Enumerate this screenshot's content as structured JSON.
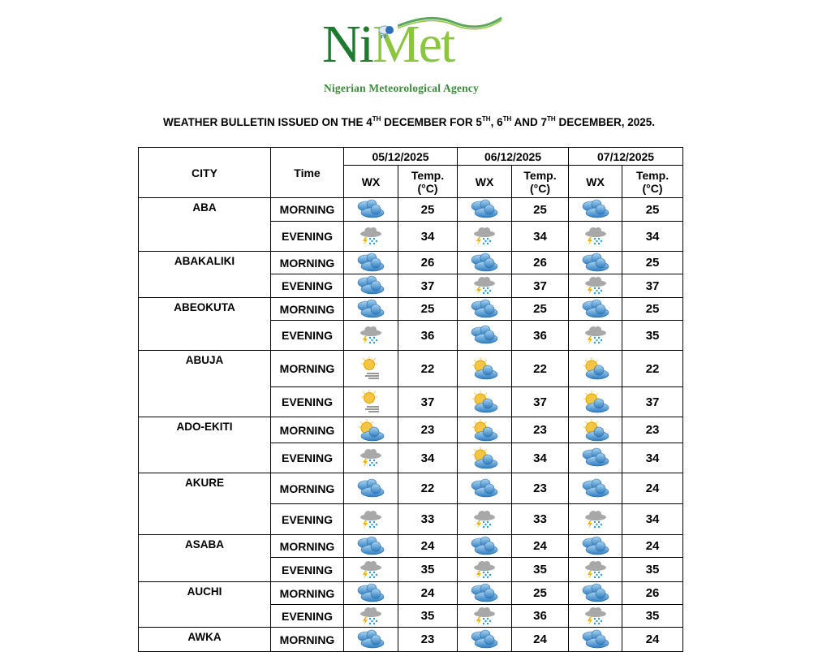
{
  "logo": {
    "text_ni": "Ni",
    "text_met": "Met",
    "subtitle": "Nigerian Meteorological Agency",
    "colors": {
      "ni": "#1f7a30",
      "met": "#8cc63f"
    }
  },
  "title_parts": [
    {
      "t": "WEATHER BULLETIN ISSUED ON THE 4"
    },
    {
      "sup": "TH"
    },
    {
      "t": " DECEMBER FOR 5"
    },
    {
      "sup": "TH"
    },
    {
      "t": ", 6"
    },
    {
      "sup": "TH"
    },
    {
      "t": " AND 7"
    },
    {
      "sup": "TH"
    },
    {
      "t": " DECEMBER, 2025."
    }
  ],
  "table": {
    "header": {
      "city": "CITY",
      "time": "Time",
      "wx": "WX",
      "temp": "Temp. (°C)"
    },
    "dates": [
      "05/12/2025",
      "06/12/2025",
      "07/12/2025"
    ],
    "cities": [
      {
        "name": "ABA",
        "rows": [
          {
            "time": "MORNING",
            "days": [
              {
                "wx": "cloudy",
                "temp": "25"
              },
              {
                "wx": "cloudy",
                "temp": "25"
              },
              {
                "wx": "cloudy",
                "temp": "25"
              }
            ]
          },
          {
            "time": "EVENING",
            "days": [
              {
                "wx": "thunderstorm",
                "temp": "34"
              },
              {
                "wx": "thunderstorm",
                "temp": "34"
              },
              {
                "wx": "thunderstorm",
                "temp": "34"
              }
            ]
          }
        ]
      },
      {
        "name": "ABAKALIKI",
        "rows": [
          {
            "time": "MORNING",
            "days": [
              {
                "wx": "cloudy",
                "temp": "26"
              },
              {
                "wx": "cloudy",
                "temp": "26"
              },
              {
                "wx": "cloudy",
                "temp": "25"
              }
            ]
          },
          {
            "time": "EVENING",
            "days": [
              {
                "wx": "cloudy",
                "temp": "37"
              },
              {
                "wx": "thunderstorm",
                "temp": "37"
              },
              {
                "wx": "thunderstorm",
                "temp": "37"
              }
            ]
          }
        ]
      },
      {
        "name": "ABEOKUTA",
        "rows": [
          {
            "time": "MORNING",
            "days": [
              {
                "wx": "cloudy",
                "temp": "25"
              },
              {
                "wx": "cloudy",
                "temp": "25"
              },
              {
                "wx": "cloudy",
                "temp": "25"
              }
            ]
          },
          {
            "time": "EVENING",
            "days": [
              {
                "wx": "thunderstorm",
                "temp": "36"
              },
              {
                "wx": "cloudy",
                "temp": "36"
              },
              {
                "wx": "thunderstorm",
                "temp": "35"
              }
            ]
          }
        ]
      },
      {
        "name": "ABUJA",
        "rows": [
          {
            "time": "MORNING",
            "days": [
              {
                "wx": "sunny-windy",
                "temp": "22"
              },
              {
                "wx": "partly-cloudy",
                "temp": "22"
              },
              {
                "wx": "partly-cloudy",
                "temp": "22"
              }
            ]
          },
          {
            "time": "EVENING",
            "days": [
              {
                "wx": "sunny-windy",
                "temp": "37"
              },
              {
                "wx": "partly-cloudy",
                "temp": "37"
              },
              {
                "wx": "partly-cloudy",
                "temp": "37"
              }
            ]
          }
        ]
      },
      {
        "name": "ADO-EKITI",
        "rows": [
          {
            "time": "MORNING",
            "days": [
              {
                "wx": "partly-cloudy",
                "temp": "23"
              },
              {
                "wx": "partly-cloudy",
                "temp": "23"
              },
              {
                "wx": "partly-cloudy",
                "temp": "23"
              }
            ]
          },
          {
            "time": "EVENING",
            "days": [
              {
                "wx": "thunderstorm",
                "temp": "34"
              },
              {
                "wx": "partly-cloudy",
                "temp": "34"
              },
              {
                "wx": "cloudy",
                "temp": "34"
              }
            ]
          }
        ]
      },
      {
        "name": "AKURE",
        "rows": [
          {
            "time": "MORNING",
            "days": [
              {
                "wx": "cloudy",
                "temp": "22"
              },
              {
                "wx": "cloudy",
                "temp": "23"
              },
              {
                "wx": "cloudy",
                "temp": "24"
              }
            ]
          },
          {
            "time": "EVENING",
            "days": [
              {
                "wx": "thunderstorm",
                "temp": "33"
              },
              {
                "wx": "thunderstorm",
                "temp": "33"
              },
              {
                "wx": "thunderstorm",
                "temp": "34"
              }
            ]
          }
        ]
      },
      {
        "name": "ASABA",
        "rows": [
          {
            "time": "MORNING",
            "days": [
              {
                "wx": "cloudy",
                "temp": "24"
              },
              {
                "wx": "cloudy",
                "temp": "24"
              },
              {
                "wx": "cloudy",
                "temp": "24"
              }
            ]
          },
          {
            "time": "EVENING",
            "days": [
              {
                "wx": "thunderstorm",
                "temp": "35"
              },
              {
                "wx": "thunderstorm",
                "temp": "35"
              },
              {
                "wx": "thunderstorm",
                "temp": "35"
              }
            ]
          }
        ]
      },
      {
        "name": "AUCHI",
        "rows": [
          {
            "time": "MORNING",
            "days": [
              {
                "wx": "cloudy",
                "temp": "24"
              },
              {
                "wx": "cloudy",
                "temp": "25"
              },
              {
                "wx": "cloudy",
                "temp": "26"
              }
            ]
          },
          {
            "time": "EVENING",
            "days": [
              {
                "wx": "thunderstorm",
                "temp": "35"
              },
              {
                "wx": "thunderstorm",
                "temp": "36"
              },
              {
                "wx": "thunderstorm",
                "temp": "35"
              }
            ]
          }
        ]
      },
      {
        "name": "AWKA",
        "rows": [
          {
            "time": "MORNING",
            "days": [
              {
                "wx": "cloudy",
                "temp": "23"
              },
              {
                "wx": "cloudy",
                "temp": "24"
              },
              {
                "wx": "cloudy",
                "temp": "24"
              }
            ]
          }
        ]
      }
    ]
  }
}
